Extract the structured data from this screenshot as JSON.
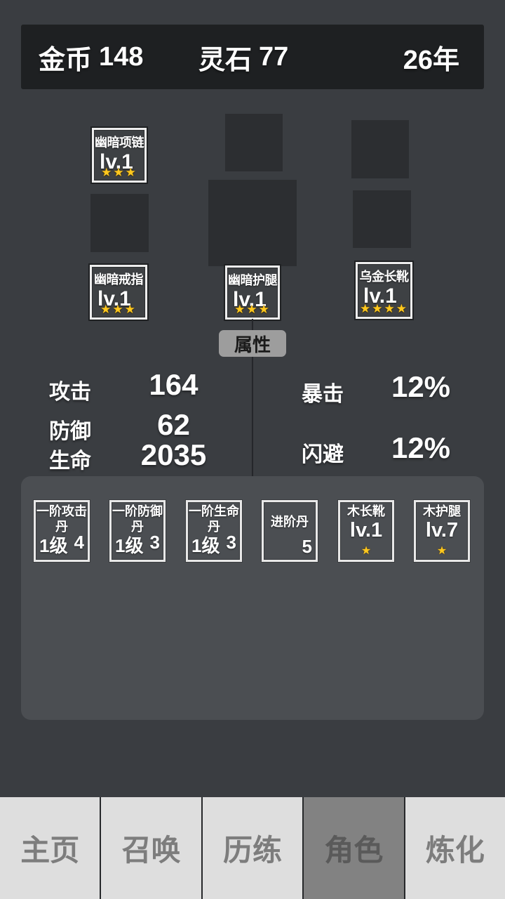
{
  "topbar": {
    "gold_label": "金币",
    "gold_value": "148",
    "stone_label": "灵石",
    "stone_value": "77",
    "year": "26年"
  },
  "equipment": {
    "necklace": {
      "name": "幽暗项链",
      "level": "lv.1",
      "stars": "★★★"
    },
    "ring": {
      "name": "幽暗戒指",
      "level": "lv.1",
      "stars": "★★★"
    },
    "legs": {
      "name": "幽暗护腿",
      "level": "lv.1",
      "stars": "★★★"
    },
    "boots": {
      "name": "乌金长靴",
      "level": "lv.1",
      "stars": "★★★★"
    }
  },
  "attributes_button_label": "属性",
  "stats": {
    "attack_label": "攻击",
    "attack_value": "164",
    "defense_label": "防御",
    "defense_value": "62",
    "hp_label": "生命",
    "hp_value": "2035",
    "crit_label": "暴击",
    "crit_value": "12%",
    "dodge_label": "闪避",
    "dodge_value": "12%"
  },
  "inventory": [
    {
      "name": "一阶攻击丹",
      "grade": "1级",
      "count": "4"
    },
    {
      "name": "一阶防御丹",
      "grade": "1级",
      "count": "3"
    },
    {
      "name": "一阶生命丹",
      "grade": "1级",
      "count": "3"
    },
    {
      "name": "进阶丹",
      "count": "5"
    },
    {
      "name": "木长靴",
      "level": "lv.1",
      "stars": "★"
    },
    {
      "name": "木护腿",
      "level": "lv.7",
      "stars": "★"
    }
  ],
  "tabs": [
    {
      "label": "主页"
    },
    {
      "label": "召唤"
    },
    {
      "label": "历练"
    },
    {
      "label": "角色",
      "selected": true
    },
    {
      "label": "炼化"
    }
  ],
  "colors": {
    "background": "#3a3d41",
    "topbar_background": "#1e2022",
    "panel_background": "#4b4e52",
    "empty_slot": "#2c2e31",
    "slot_border": "#ededed",
    "star_gold": "#ffc81e",
    "tab_background": "#dedede",
    "tab_selected_background": "#828282",
    "text_white": "#ffffff"
  }
}
